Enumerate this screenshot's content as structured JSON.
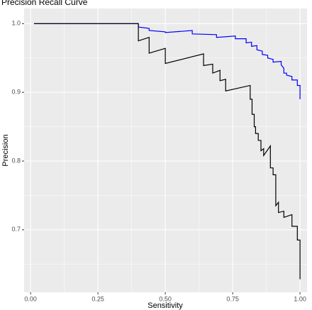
{
  "chart_data": {
    "type": "line",
    "title": "Precision Recall Curve",
    "x_label": "Sensitivity",
    "y_label": "Precision",
    "xlim": [
      -0.024,
      1.026
    ],
    "ylim": [
      0.609,
      1.022
    ],
    "xticks": [
      {
        "value": 0,
        "label": "0.00"
      },
      {
        "value": 0.25,
        "label": "0.25"
      },
      {
        "value": 0.5,
        "label": "0.50"
      },
      {
        "value": 0.75,
        "label": "0.75"
      },
      {
        "value": 1,
        "label": "1.00"
      }
    ],
    "yticks": [
      0.7,
      0.8,
      0.9,
      {
        "value": 1,
        "label": "1.0"
      }
    ],
    "x_minor_breaks": [
      0.125,
      0.375,
      0.625,
      0.875
    ],
    "y_minor_breaks": [
      0.65,
      0.75,
      0.85,
      0.95
    ],
    "grid": true,
    "series": [
      {
        "color": "#0000ff",
        "x": [
          0.0125,
          0.4,
          0.4,
          0.44,
          0.44,
          0.5,
          0.5,
          0.6,
          0.6,
          0.69,
          0.69,
          0.76,
          0.76,
          0.8,
          0.8,
          0.82,
          0.82,
          0.84,
          0.84,
          0.86,
          0.86,
          0.88,
          0.88,
          0.9,
          0.9,
          0.93,
          0.93,
          0.94,
          0.94,
          0.95,
          0.95,
          0.97,
          0.97,
          0.99,
          0.99,
          1.0,
          1.0
        ],
        "values": [
          1.0,
          1.0,
          0.995,
          0.993,
          0.99,
          0.988,
          0.987,
          0.99,
          0.985,
          0.984,
          0.98,
          0.982,
          0.978,
          0.978,
          0.972,
          0.973,
          0.967,
          0.968,
          0.962,
          0.96,
          0.955,
          0.954,
          0.95,
          0.948,
          0.944,
          0.945,
          0.94,
          0.935,
          0.928,
          0.928,
          0.925,
          0.923,
          0.918,
          0.918,
          0.91,
          0.91,
          0.89
        ]
      },
      {
        "color": "#000000",
        "x": [
          0.0125,
          0.4,
          0.4,
          0.44,
          0.44,
          0.5,
          0.5,
          0.642,
          0.642,
          0.676,
          0.676,
          0.703,
          0.703,
          0.724,
          0.724,
          0.815,
          0.815,
          0.822,
          0.822,
          0.83,
          0.83,
          0.835,
          0.835,
          0.845,
          0.845,
          0.855,
          0.855,
          0.865,
          0.865,
          0.89,
          0.89,
          0.9,
          0.9,
          0.91,
          0.91,
          0.92,
          0.92,
          0.94,
          0.94,
          0.97,
          0.97,
          0.99,
          0.99,
          1.0,
          1.0
        ],
        "values": [
          1.0,
          1.0,
          0.975,
          0.98,
          0.957,
          0.964,
          0.942,
          0.956,
          0.939,
          0.941,
          0.928,
          0.932,
          0.917,
          0.919,
          0.902,
          0.91,
          0.89,
          0.89,
          0.868,
          0.868,
          0.85,
          0.85,
          0.84,
          0.84,
          0.83,
          0.83,
          0.815,
          0.818,
          0.808,
          0.822,
          0.79,
          0.79,
          0.78,
          0.78,
          0.735,
          0.74,
          0.725,
          0.727,
          0.718,
          0.722,
          0.705,
          0.705,
          0.685,
          0.685,
          0.628
        ]
      }
    ]
  }
}
